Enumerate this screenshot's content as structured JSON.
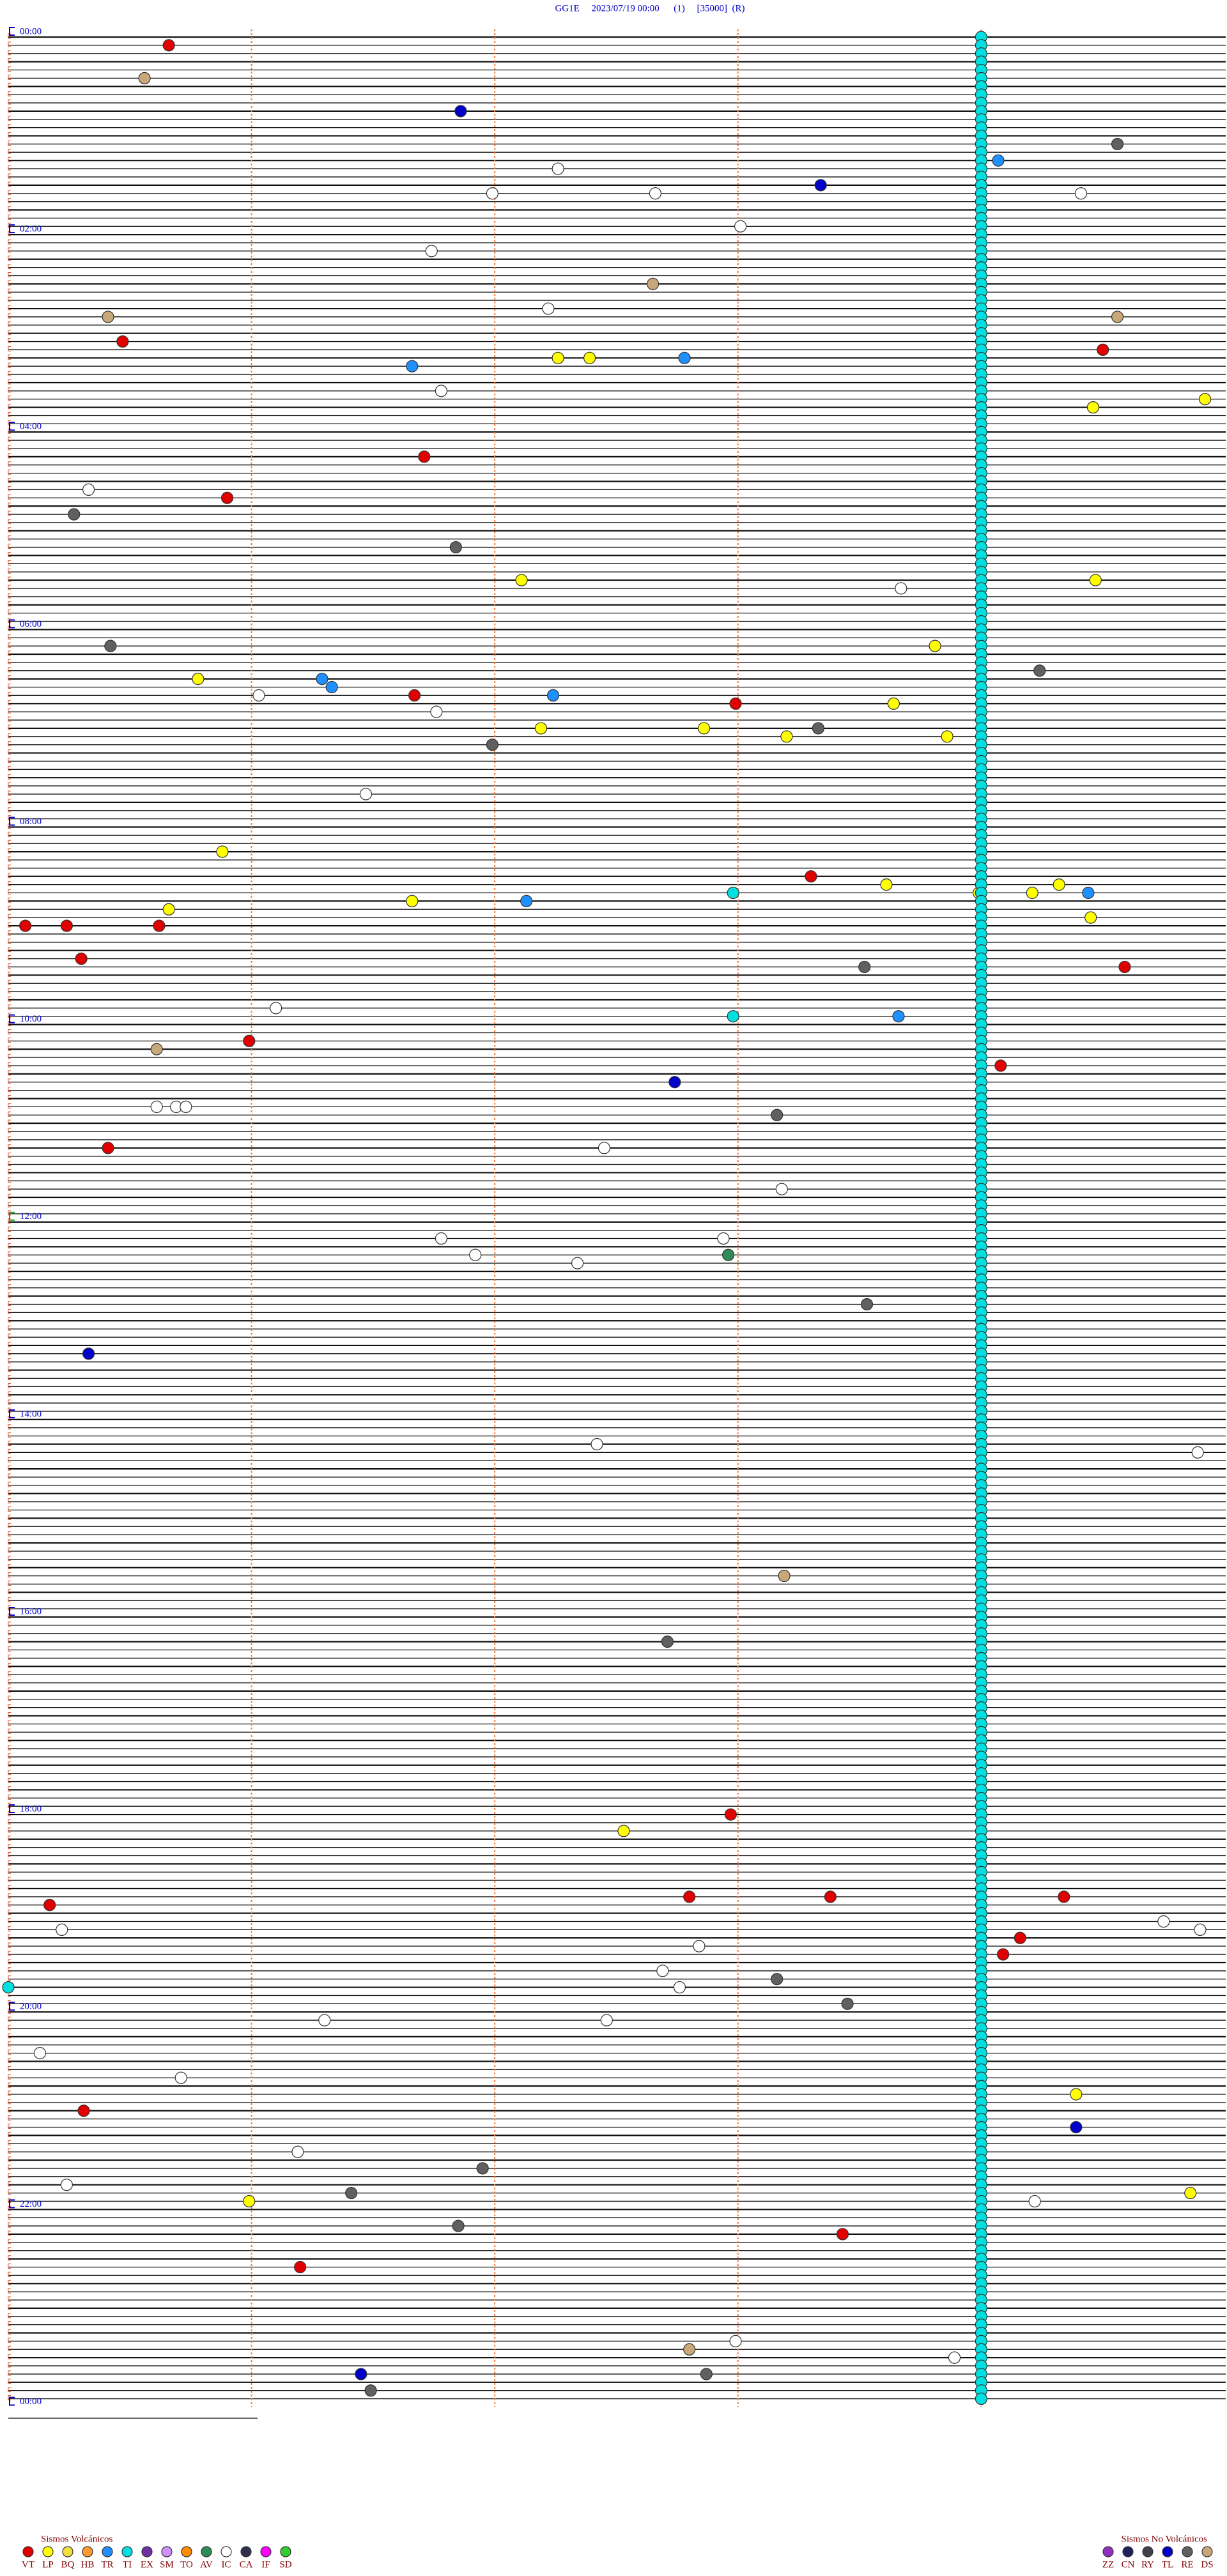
{
  "header": "GG1E     2023/07/19 00:00      (1)     [35000]  (R)",
  "hour_labels": [
    "00:00",
    "02:00",
    "04:00",
    "06:00",
    "08:00",
    "10:00",
    "12:00",
    "14:00",
    "16:00",
    "18:00",
    "20:00",
    "22:00",
    "00:00"
  ],
  "legend": [
    {
      "title": "Sismos Volcánicos",
      "side": "left",
      "types": [
        {
          "code": "VT",
          "color": "#e00000",
          "minutes": [
            5.66,
            185.47,
            194.5,
            256.71,
            280.9,
            401.67,
            407.99,
            513.3,
            540.07,
            540.24,
            540.62,
            560.3,
            569.59,
            610.99,
            629.08,
            675.41,
            1082.97,
            1132.8,
            1133.38,
            1134.34,
            1135.17,
            1159.16,
            1169.09,
            1260.31,
            1338.43,
            1356.2
          ]
        },
        {
          "code": "LP",
          "color": "#ffff00",
          "minutes": [
            197.26,
            197.39,
            224.92,
            229.46,
            332.11,
            334.47,
            373.81,
            390.78,
            408.64,
            422.19,
            422.86,
            428.2,
            428.86,
            495.88,
            518.61,
            519.32,
            523.99,
            524.21,
            526.66,
            530.66,
            539.45,
            1092.53,
            1254.39,
            1314.86,
            1315.99
          ]
        },
        {
          "code": "BQ",
          "color": "#f0e040"
        },
        {
          "code": "HB",
          "color": "#ff9a30"
        },
        {
          "code": "TR",
          "color": "#1e90ff",
          "minutes": [
            79.07,
            197.78,
            201.66,
            391.29,
            396.33,
            402.24,
            524.44,
            527.13,
            598.66
          ]
        },
        {
          "code": "TI",
          "color": "#00e0e0",
          "minutes": [
            4,
            9,
            14,
            19,
            24,
            29,
            34,
            39,
            44,
            49,
            54,
            59,
            64,
            69,
            74,
            79,
            84,
            89,
            94,
            99,
            104,
            109,
            114,
            119,
            124,
            129,
            134,
            139,
            144,
            149,
            154,
            159,
            164,
            169,
            174,
            179,
            184,
            189,
            194,
            199,
            204,
            209,
            214,
            219,
            224,
            229,
            234,
            239,
            244,
            249,
            254,
            259,
            264,
            269,
            274,
            279,
            284,
            289,
            294,
            299,
            304,
            309,
            314,
            319,
            324,
            329,
            334,
            339,
            344,
            349,
            354,
            359,
            364,
            369,
            374,
            379,
            384,
            389,
            394,
            399,
            404,
            409,
            414,
            419,
            424,
            429,
            434,
            439,
            444,
            449,
            454,
            459,
            464,
            469,
            474,
            479,
            484,
            489,
            494,
            499,
            504,
            509,
            514,
            519,
            524,
            529,
            534,
            539,
            544,
            549,
            554,
            559,
            564,
            569,
            574,
            579,
            584,
            589,
            594,
            599,
            604,
            609,
            614,
            619,
            624,
            629,
            634,
            639,
            644,
            649,
            654,
            659,
            664,
            669,
            674,
            679,
            684,
            689,
            694,
            699,
            704,
            709,
            714,
            719,
            724,
            729,
            734,
            739,
            744,
            749,
            754,
            759,
            764,
            769,
            774,
            779,
            784,
            789,
            794,
            799,
            804,
            809,
            814,
            819,
            824,
            829,
            834,
            839,
            844,
            849,
            854,
            859,
            864,
            869,
            874,
            879,
            884,
            889,
            894,
            899,
            904,
            909,
            914,
            919,
            924,
            929,
            934,
            939,
            944,
            949,
            954,
            959,
            964,
            969,
            974,
            979,
            984,
            989,
            994,
            999,
            1004,
            1009,
            1014,
            1019,
            1024,
            1029,
            1034,
            1039,
            1044,
            1049,
            1054,
            1059,
            1064,
            1069,
            1074,
            1079,
            1084,
            1089,
            1094,
            1099,
            1104,
            1109,
            1114,
            1119,
            1124,
            1129,
            1134,
            1139,
            1144,
            1149,
            1154,
            1159,
            1164,
            1169,
            1174,
            1179,
            1184,
            1189,
            1194,
            1199,
            1204,
            1209,
            1214,
            1219,
            1224,
            1229,
            1234,
            1239,
            1244,
            1249,
            1254,
            1259,
            1264,
            1269,
            1274,
            1279,
            1284,
            1289,
            1294,
            1299,
            1304,
            1309,
            1314,
            1319,
            1324,
            1329,
            1334,
            1339,
            1344,
            1349,
            1354,
            1359,
            1364,
            1369,
            1374,
            1379,
            1384,
            1389,
            1394,
            1399,
            1404,
            1409,
            1414,
            1419,
            1424,
            1429,
            1434,
            1439,
            522.98,
            597.98,
            1185
          ]
        },
        {
          "code": "EX",
          "color": "#7030a0"
        },
        {
          "code": "SM",
          "color": "#d090ff"
        },
        {
          "code": "TO",
          "color": "#ff8c00"
        },
        {
          "code": "AV",
          "color": "#2e8b57",
          "minutes": [
            742.96
          ]
        },
        {
          "code": "IC",
          "color": "#ffffff",
          "minutes": [
            82.26,
            96.99,
            97.66,
            99.41,
            118.01,
            131.74,
            167.22,
            216.78,
            275.33,
            338.67,
            401.03,
            411.76,
            461.47,
            591.1,
            650.61,
            650.69,
            650.73,
            677.45,
            703.18,
            731.78,
            732.94,
            741.92,
            747.34,
            857.42,
            864.89,
            1149.75,
            1150.22,
            1154.9,
            1162.84,
            1177.69,
            1187.76,
            1206.3,
            1207.46,
            1225.13,
            1240.71,
            1286.19,
            1305.24,
            1319.22,
            1402.99,
            1413.89
          ]
        },
        {
          "code": "CA",
          "color": "#303050"
        },
        {
          "code": "IF",
          "color": "#ff00ff"
        },
        {
          "code": "SD",
          "color": "#32cd32"
        }
      ]
    },
    {
      "title": "Sismos No Volcánicos",
      "side": "right",
      "types": [
        {
          "code": "ZZ",
          "color": "#9030c0"
        },
        {
          "code": "CN",
          "color": "#202060"
        },
        {
          "code": "RY",
          "color": "#404048"
        },
        {
          "code": "TL",
          "color": "#0000c8",
          "minutes": [
            46.86,
            93.34,
            637.74,
            800.33,
            1274.39,
            1421.45
          ]
        },
        {
          "code": "RE",
          "color": "#606060",
          "minutes": [
            69.56,
            290.27,
            311.84,
            370.42,
            389.24,
            423.33,
            431.99,
            568.52,
            658.16,
            773.53,
            977.71,
            1183.16,
            1198.45,
            1296.95,
            1311.41,
            1331.85,
            1422.87,
            1431.49
          ]
        },
        {
          "code": "DS",
          "color": "#c8a878",
          "minutes": [
            25.56,
            152.65,
            170.41,
            174.56,
            615.61,
            938.19,
            1407.8
          ]
        }
      ]
    }
  ]
}
